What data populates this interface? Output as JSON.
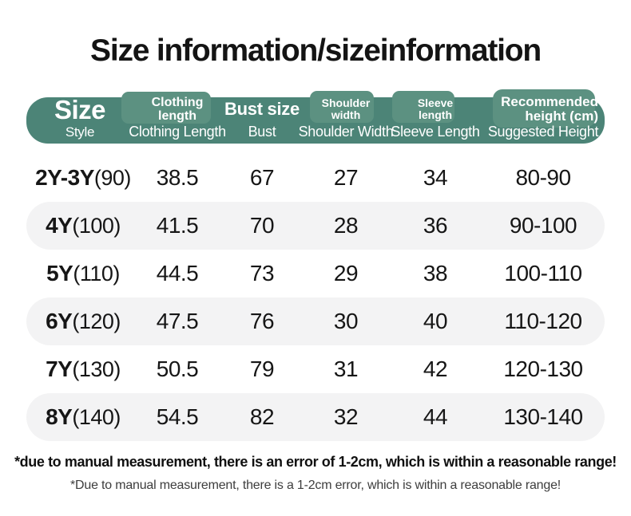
{
  "title": "Size information/sizeinformation",
  "colors": {
    "band_green": "#4c8477",
    "chip_green": "#5c9181",
    "row_stripe": "#f3f3f4",
    "text": "#161616"
  },
  "table": {
    "header": {
      "columns": [
        {
          "top": "Size",
          "bottom": "Style"
        },
        {
          "top": "Clothing length",
          "bottom": "Clothing Length"
        },
        {
          "top": "Bust size",
          "bottom": "Bust"
        },
        {
          "top": "Shoulder width",
          "bottom": "Shoulder Width"
        },
        {
          "top": "Sleeve length",
          "bottom": "Sleeve Length"
        },
        {
          "top": "Recommended height (cm)",
          "bottom": "Suggested Height"
        }
      ]
    },
    "rows": [
      {
        "style": "2Y-3Y",
        "note": "(90)",
        "clothing_length": "38.5",
        "bust": "67",
        "shoulder_width": "27",
        "sleeve_length": "34",
        "suggested_height": "80-90"
      },
      {
        "style": "4Y",
        "note": "(100)",
        "clothing_length": "41.5",
        "bust": "70",
        "shoulder_width": "28",
        "sleeve_length": "36",
        "suggested_height": "90-100"
      },
      {
        "style": "5Y",
        "note": "(110)",
        "clothing_length": "44.5",
        "bust": "73",
        "shoulder_width": "29",
        "sleeve_length": "38",
        "suggested_height": "100-110"
      },
      {
        "style": "6Y",
        "note": "(120)",
        "clothing_length": "47.5",
        "bust": "76",
        "shoulder_width": "30",
        "sleeve_length": "40",
        "suggested_height": "110-120"
      },
      {
        "style": "7Y",
        "note": "(130)",
        "clothing_length": "50.5",
        "bust": "79",
        "shoulder_width": "31",
        "sleeve_length": "42",
        "suggested_height": "120-130"
      },
      {
        "style": "8Y",
        "note": "(140)",
        "clothing_length": "54.5",
        "bust": "82",
        "shoulder_width": "32",
        "sleeve_length": "44",
        "suggested_height": "130-140"
      }
    ]
  },
  "footnotes": {
    "line1": "*due to manual measurement, there is an error of 1-2cm, which is within a reasonable range!",
    "line2": "*Due to manual measurement, there is a 1-2cm error, which is within a reasonable range!"
  }
}
